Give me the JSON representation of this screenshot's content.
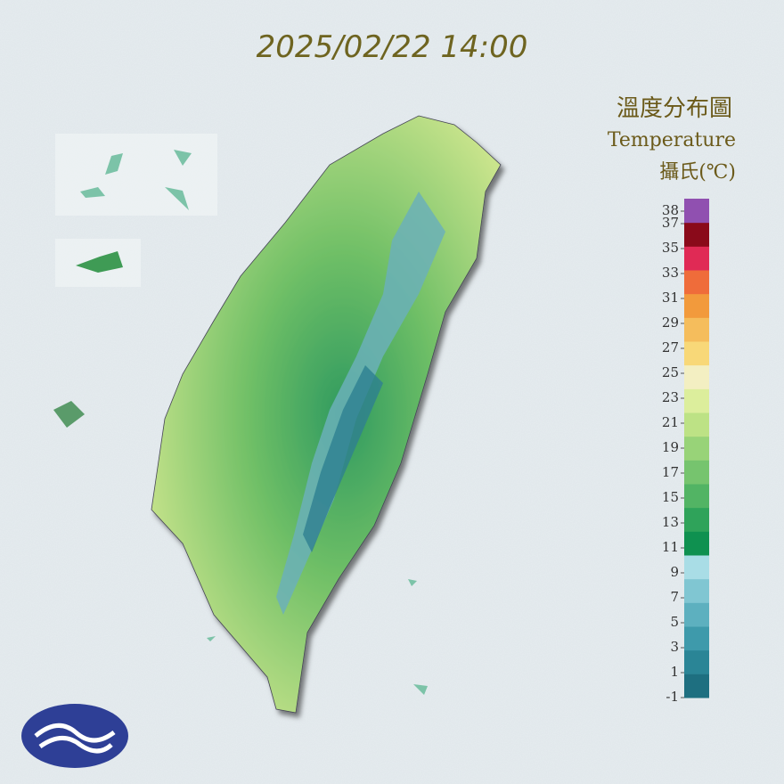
{
  "title": "2025/02/22 14:00",
  "legend": {
    "title": "溫度分布圖",
    "subtitle": "Temperature",
    "unit": "攝氏(℃)",
    "range": [
      -1,
      39
    ],
    "ticks": [
      -1,
      1,
      3,
      5,
      7,
      9,
      11,
      13,
      15,
      17,
      19,
      21,
      23,
      25,
      27,
      29,
      31,
      33,
      35,
      37,
      38
    ],
    "colors": [
      "#1e6f80",
      "#2a8596",
      "#3e9aab",
      "#5db0bf",
      "#80c6d2",
      "#a9dde6",
      "#0f9150",
      "#2fa35a",
      "#52b464",
      "#76c46e",
      "#98d378",
      "#bde285",
      "#dcee9c",
      "#f3efc2",
      "#f8d878",
      "#f5bd5c",
      "#f29a3c",
      "#ef6c3a",
      "#e02a55",
      "#8a0a1a",
      "#9050b0"
    ]
  }
}
